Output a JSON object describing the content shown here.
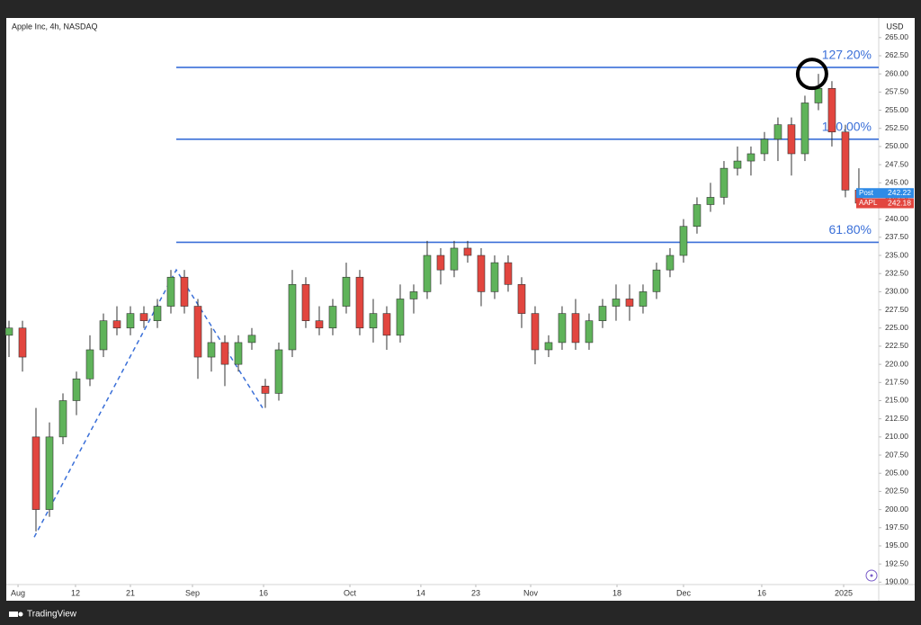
{
  "chart_data": {
    "type": "candlestick",
    "title": "Apple Inc, 4h, NASDAQ",
    "y_axis_unit": "USD",
    "footer": "TradingView",
    "x": [
      0,
      1,
      2,
      3,
      4,
      5,
      6,
      7,
      8,
      9,
      10,
      11,
      12,
      13,
      14,
      15,
      16,
      17,
      18,
      19,
      20,
      21,
      22,
      23,
      24,
      25,
      26,
      27,
      28,
      29,
      30,
      31,
      32,
      33,
      34,
      35,
      36,
      37,
      38,
      39,
      40,
      41,
      42,
      43,
      44,
      45,
      46,
      47,
      48,
      49,
      50,
      51,
      52,
      53,
      54,
      55,
      56,
      57,
      58,
      59,
      60,
      61,
      62,
      63
    ],
    "open": [
      224,
      225,
      210,
      200,
      210,
      215,
      218,
      222,
      226,
      225,
      227,
      226,
      228,
      232,
      228,
      221,
      223,
      220,
      223,
      217,
      216,
      222,
      231,
      226,
      225,
      228,
      232,
      225,
      227,
      224,
      229,
      230,
      235,
      233,
      236,
      235,
      230,
      234,
      231,
      227,
      222,
      223,
      227,
      223,
      226,
      228,
      229,
      228,
      230,
      233,
      235,
      239,
      242,
      243,
      247,
      248,
      249,
      251,
      253,
      249,
      256,
      258,
      252,
      244
    ],
    "high": [
      226,
      226,
      214,
      212,
      216,
      219,
      224,
      227,
      228,
      228,
      228,
      229,
      233,
      233,
      229,
      225,
      224,
      224,
      225,
      218,
      223,
      233,
      232,
      228,
      229,
      234,
      233,
      229,
      228,
      231,
      231,
      237,
      236,
      237,
      237,
      236,
      235,
      235,
      232,
      228,
      224,
      228,
      229,
      227,
      229,
      231,
      231,
      231,
      234,
      236,
      240,
      243,
      245,
      248,
      250,
      250,
      252,
      254,
      254,
      257,
      260,
      259,
      253,
      247
    ],
    "low": [
      221,
      219,
      197,
      199,
      209,
      213,
      217,
      221,
      224,
      224,
      225,
      225,
      227,
      227,
      218,
      219,
      217,
      219,
      222,
      214,
      215,
      221,
      225,
      224,
      224,
      227,
      224,
      223,
      222,
      223,
      227,
      229,
      231,
      232,
      234,
      228,
      229,
      230,
      225,
      220,
      221,
      222,
      222,
      222,
      225,
      226,
      226,
      227,
      229,
      232,
      234,
      238,
      241,
      242,
      246,
      246,
      248,
      248,
      246,
      248,
      255,
      250,
      243,
      242
    ],
    "close": [
      225,
      221,
      200,
      210,
      215,
      218,
      222,
      226,
      225,
      227,
      226,
      228,
      232,
      228,
      221,
      223,
      220,
      223,
      224,
      216,
      222,
      231,
      226,
      225,
      228,
      232,
      225,
      227,
      224,
      229,
      230,
      235,
      233,
      236,
      235,
      230,
      234,
      231,
      227,
      222,
      223,
      227,
      223,
      226,
      228,
      229,
      228,
      230,
      233,
      235,
      239,
      242,
      243,
      247,
      248,
      249,
      251,
      253,
      249,
      256,
      258,
      252,
      244,
      242.2
    ],
    "up_color": "#5fb35a",
    "down_color": "#e2463f",
    "xlim": [
      -0.2,
      64.47
    ],
    "ylim": [
      189.3,
      267.7
    ],
    "xticks": [
      {
        "value": 0.67,
        "label": "Aug"
      },
      {
        "value": 4.93,
        "label": "12"
      },
      {
        "value": 9,
        "label": "21"
      },
      {
        "value": 13.6,
        "label": "Sep"
      },
      {
        "value": 18.87,
        "label": "16"
      },
      {
        "value": 25.27,
        "label": "Oct"
      },
      {
        "value": 30.53,
        "label": "14"
      },
      {
        "value": 34.6,
        "label": "23"
      },
      {
        "value": 38.67,
        "label": "Nov"
      },
      {
        "value": 45.07,
        "label": "18"
      },
      {
        "value": 50,
        "label": "Dec"
      },
      {
        "value": 55.8,
        "label": "16"
      },
      {
        "value": 61.87,
        "label": "2025"
      }
    ],
    "yticks": [
      {
        "value": 190,
        "label": "190.00"
      },
      {
        "value": 192.5,
        "label": "192.50"
      },
      {
        "value": 195,
        "label": "195.00"
      },
      {
        "value": 197.5,
        "label": "197.50"
      },
      {
        "value": 200,
        "label": "200.00"
      },
      {
        "value": 202.5,
        "label": "202.50"
      },
      {
        "value": 205,
        "label": "205.00"
      },
      {
        "value": 207.5,
        "label": "207.50"
      },
      {
        "value": 210,
        "label": "210.00"
      },
      {
        "value": 212.5,
        "label": "212.50"
      },
      {
        "value": 215,
        "label": "215.00"
      },
      {
        "value": 217.5,
        "label": "217.50"
      },
      {
        "value": 220,
        "label": "220.00"
      },
      {
        "value": 222.5,
        "label": "222.50"
      },
      {
        "value": 225,
        "label": "225.00"
      },
      {
        "value": 227.5,
        "label": "227.50"
      },
      {
        "value": 230,
        "label": "230.00"
      },
      {
        "value": 232.5,
        "label": "232.50"
      },
      {
        "value": 235,
        "label": "235.00"
      },
      {
        "value": 237.5,
        "label": "237.50"
      },
      {
        "value": 240,
        "label": "240.00"
      },
      {
        "value": 242.5,
        "label": "242.50"
      },
      {
        "value": 245,
        "label": "245.00"
      },
      {
        "value": 247.5,
        "label": "247.50"
      },
      {
        "value": 250,
        "label": "250.00"
      },
      {
        "value": 252.5,
        "label": "252.50"
      },
      {
        "value": 255,
        "label": "255.00"
      },
      {
        "value": 257.5,
        "label": "257.50"
      },
      {
        "value": 260,
        "label": "260.00"
      },
      {
        "value": 262.5,
        "label": "262.50"
      },
      {
        "value": 265,
        "label": "265.00"
      }
    ],
    "fib_levels": {
      "color": "#3a6fd8",
      "start_x": 12.4,
      "levels": [
        {
          "value": 260.9,
          "label": "127.20%"
        },
        {
          "value": 251.0,
          "label": "100.00%"
        },
        {
          "value": 236.8,
          "label": "61.80%"
        }
      ]
    },
    "zigzag": {
      "color": "#3a6fd8",
      "x": [
        1.87,
        12.4,
        18.8
      ],
      "y": [
        196.2,
        233,
        214
      ]
    },
    "highlight": {
      "x": 59.53,
      "y": 260.0
    },
    "price_tags": [
      {
        "name": "Post",
        "value": 242.22,
        "label": "242.22",
        "color": "#2f8be6"
      },
      {
        "name": "AAPL",
        "value": 242.18,
        "label": "242.18",
        "color": "#e2463f"
      }
    ]
  }
}
